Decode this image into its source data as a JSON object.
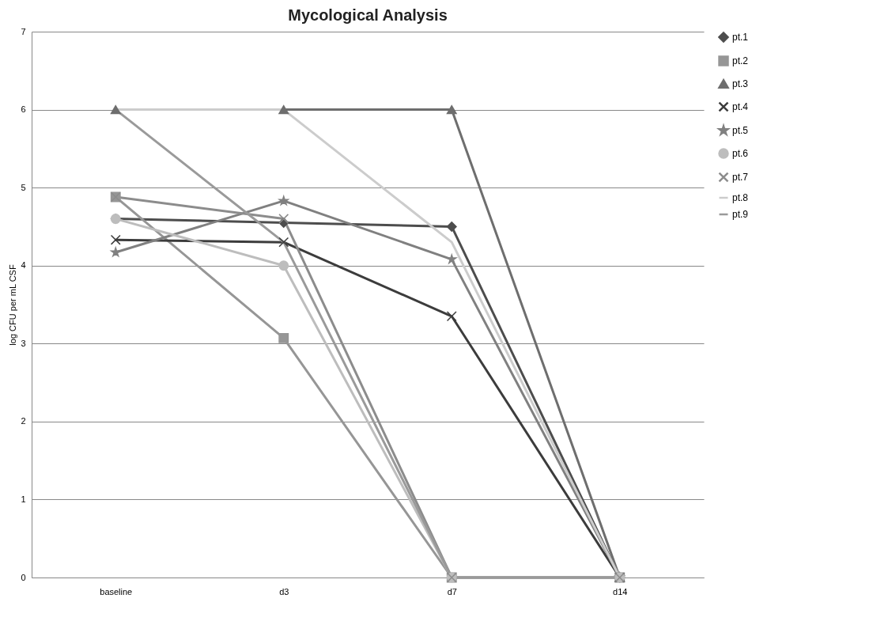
{
  "chart_data": {
    "type": "line",
    "title": "Mycological Analysis",
    "ylabel": "log CFU per mL CSF",
    "categories": [
      "baseline",
      "d3",
      "d7",
      "d14"
    ],
    "ylim": [
      0,
      7
    ],
    "yticks": [
      0,
      1,
      2,
      3,
      4,
      5,
      6,
      7
    ],
    "grid": "y",
    "legend": "right",
    "series": [
      {
        "name": "pt.1",
        "color": "#4d4d4d",
        "marker": "diamond",
        "values": [
          4.6,
          4.55,
          4.5,
          0
        ]
      },
      {
        "name": "pt.2",
        "color": "#969696",
        "marker": "square",
        "values": [
          4.88,
          3.07,
          0,
          0
        ]
      },
      {
        "name": "pt.3",
        "color": "#6e6e6e",
        "marker": "triangle",
        "values": [
          6,
          6,
          6,
          0
        ]
      },
      {
        "name": "pt.4",
        "color": "#3c3c3c",
        "marker": "cross",
        "values": [
          4.33,
          4.3,
          3.35,
          0
        ]
      },
      {
        "name": "pt.5",
        "color": "#808080",
        "marker": "star",
        "values": [
          4.17,
          4.83,
          4.08,
          0
        ]
      },
      {
        "name": "pt.6",
        "color": "#bdbdbd",
        "marker": "circle",
        "values": [
          4.6,
          4.0,
          0,
          0
        ]
      },
      {
        "name": "pt.7",
        "color": "#8c8c8c",
        "marker": "cross",
        "values": [
          4.88,
          4.6,
          0,
          0
        ]
      },
      {
        "name": "pt.8",
        "color": "#cccccc",
        "marker": "none",
        "values": [
          6,
          6,
          4.3,
          0
        ]
      },
      {
        "name": "pt.9",
        "color": "#9a9a9a",
        "marker": "none",
        "values": [
          6,
          4.3,
          0,
          0
        ]
      }
    ]
  }
}
